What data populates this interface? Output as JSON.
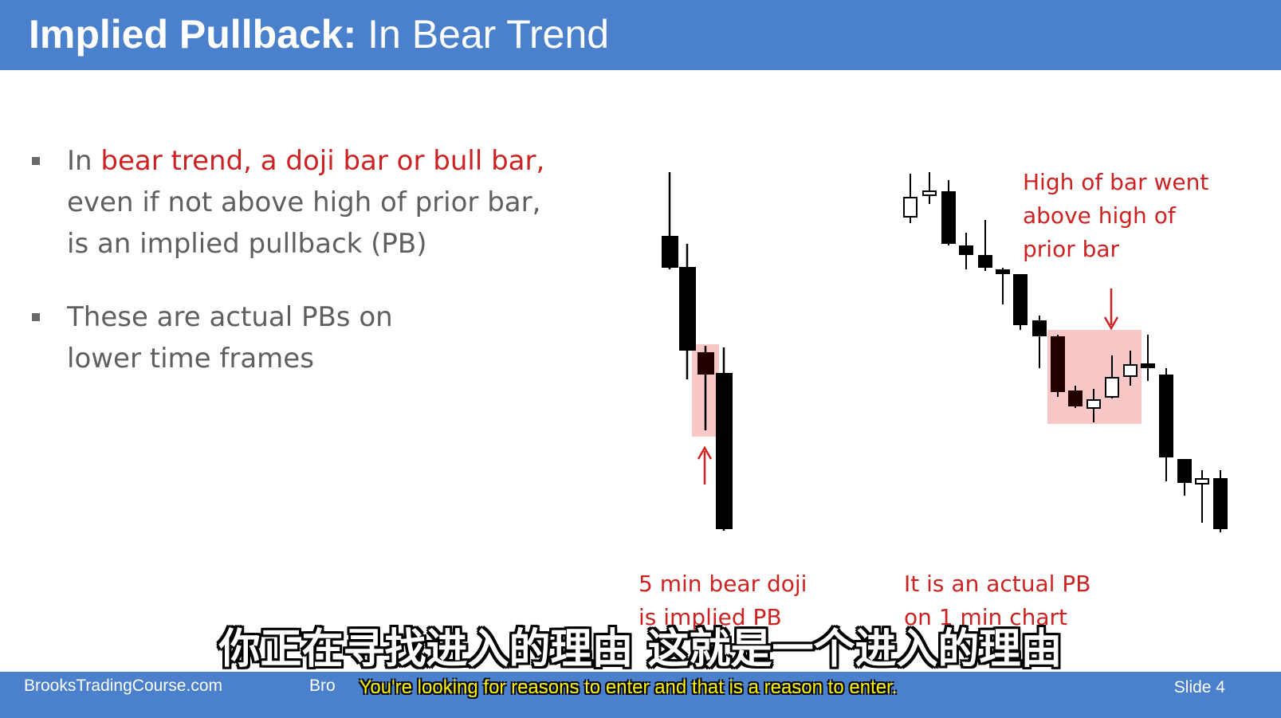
{
  "header": {
    "title_bold": "Implied Pullback:",
    "title_rest": " In Bear Trend"
  },
  "bullets": {
    "b1": {
      "pre": "In ",
      "highlight": "bear trend, a doji bar or bull bar,",
      "line2": "even if not above high of prior bar,",
      "line3": "is an implied pullback (PB)"
    },
    "b2": {
      "line1": "These are actual PBs on",
      "line2": "lower time frames"
    }
  },
  "chart_left": {
    "caption_line1": "5 min bear doji",
    "caption_line2": "is implied PB"
  },
  "chart_right": {
    "annotation_line1": "High of bar went",
    "annotation_line2": "above high of",
    "annotation_line3": "prior bar",
    "caption_line1": "It is an actual PB",
    "caption_line2": "on 1 min chart"
  },
  "footer": {
    "site": "BrooksTradingCourse.com",
    "mid_partial": "Bro",
    "slide": "Slide  4"
  },
  "subtitles": {
    "chinese": "你正在寻找进入的理由 这就是一个进入的理由",
    "english": "You're looking for reasons to enter and that is a reason to enter."
  },
  "colors": {
    "header_bg": "#4a80cc",
    "accent_red": "#cc2222",
    "highlight_pink": "#f8c8c8",
    "body_text": "#5f5f5f"
  }
}
